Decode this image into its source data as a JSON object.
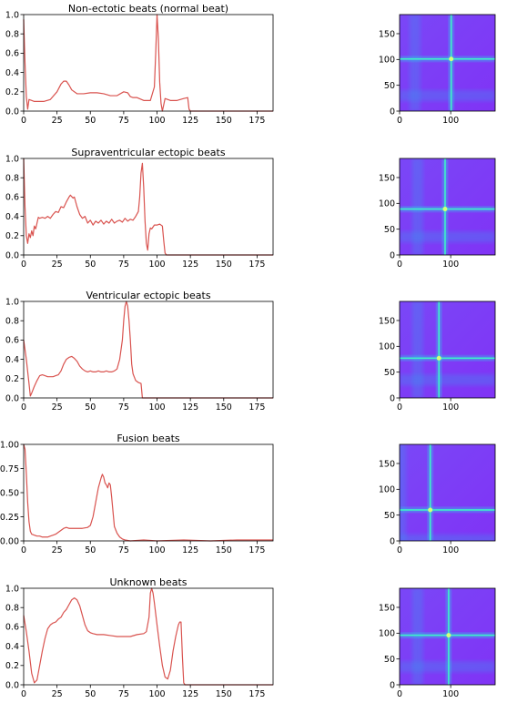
{
  "chart_data": [
    {
      "type": "line",
      "title": "Non-ectotic beats (normal beat)",
      "xlim": [
        0,
        187
      ],
      "ylim": [
        0,
        1.0
      ],
      "xticks": [
        0,
        25,
        50,
        75,
        100,
        125,
        150,
        175
      ],
      "yticks": [
        "0.0",
        "0.2",
        "0.4",
        "0.6",
        "0.8",
        "1.0"
      ],
      "grid": false,
      "line_color": "#d9534f",
      "x": [
        0,
        1,
        2,
        3,
        4,
        6,
        8,
        12,
        15,
        20,
        25,
        28,
        30,
        32,
        34,
        36,
        40,
        45,
        50,
        55,
        60,
        65,
        70,
        75,
        78,
        80,
        82,
        85,
        90,
        95,
        98,
        99,
        100,
        101,
        102,
        103,
        104,
        106,
        110,
        115,
        120,
        123,
        124,
        125,
        187
      ],
      "y": [
        0.95,
        0.5,
        0.15,
        0.02,
        0.12,
        0.11,
        0.1,
        0.1,
        0.1,
        0.12,
        0.2,
        0.28,
        0.31,
        0.31,
        0.27,
        0.22,
        0.18,
        0.18,
        0.19,
        0.19,
        0.18,
        0.16,
        0.16,
        0.2,
        0.19,
        0.15,
        0.14,
        0.14,
        0.11,
        0.11,
        0.25,
        0.6,
        1.0,
        0.75,
        0.3,
        0.08,
        0.0,
        0.13,
        0.11,
        0.11,
        0.13,
        0.14,
        0.02,
        0.0,
        0.0
      ]
    },
    {
      "type": "heatmap",
      "xlim": [
        0,
        187
      ],
      "ylim": [
        0,
        187
      ],
      "xticks": [
        0,
        100
      ],
      "yticks": [
        0,
        50,
        100,
        150
      ],
      "colormap": "rainbow",
      "bright_index": 101,
      "faint_index": 30
    },
    {
      "type": "line",
      "title": "Supraventricular ectopic beats",
      "xlim": [
        0,
        187
      ],
      "ylim": [
        0,
        1.0
      ],
      "xticks": [
        0,
        25,
        50,
        75,
        100,
        125,
        150,
        175
      ],
      "yticks": [
        "0.0",
        "0.2",
        "0.4",
        "0.6",
        "0.8",
        "1.0"
      ],
      "grid": false,
      "line_color": "#d9534f",
      "x": [
        0,
        1,
        2,
        3,
        4,
        5,
        6,
        7,
        8,
        9,
        10,
        11,
        12,
        14,
        16,
        18,
        20,
        22,
        24,
        26,
        28,
        30,
        32,
        34,
        35,
        37,
        38,
        40,
        42,
        44,
        46,
        48,
        50,
        52,
        54,
        56,
        58,
        60,
        62,
        64,
        66,
        68,
        70,
        72,
        74,
        76,
        78,
        80,
        82,
        84,
        86,
        87,
        88,
        89,
        90,
        91,
        92,
        93,
        94,
        95,
        96,
        98,
        100,
        102,
        104,
        105,
        106,
        107,
        187
      ],
      "y": [
        1.0,
        0.5,
        0.2,
        0.12,
        0.22,
        0.18,
        0.25,
        0.2,
        0.3,
        0.27,
        0.33,
        0.39,
        0.38,
        0.39,
        0.38,
        0.4,
        0.38,
        0.42,
        0.45,
        0.44,
        0.5,
        0.49,
        0.55,
        0.6,
        0.62,
        0.59,
        0.6,
        0.5,
        0.42,
        0.38,
        0.4,
        0.33,
        0.36,
        0.31,
        0.35,
        0.33,
        0.36,
        0.32,
        0.35,
        0.33,
        0.37,
        0.33,
        0.35,
        0.36,
        0.34,
        0.38,
        0.35,
        0.37,
        0.36,
        0.4,
        0.45,
        0.6,
        0.85,
        0.95,
        0.7,
        0.35,
        0.12,
        0.05,
        0.22,
        0.28,
        0.27,
        0.31,
        0.31,
        0.32,
        0.3,
        0.15,
        0.02,
        0.0,
        0.0
      ]
    },
    {
      "type": "heatmap",
      "xlim": [
        0,
        187
      ],
      "ylim": [
        0,
        187
      ],
      "xticks": [
        0,
        100
      ],
      "yticks": [
        0,
        50,
        100,
        150
      ],
      "colormap": "rainbow",
      "bright_index": 89,
      "faint_index": 35
    },
    {
      "type": "line",
      "title": "Ventricular ectopic beats",
      "xlim": [
        0,
        187
      ],
      "ylim": [
        0,
        1.0
      ],
      "xticks": [
        0,
        25,
        50,
        75,
        100,
        125,
        150,
        175
      ],
      "yticks": [
        "0.0",
        "0.2",
        "0.4",
        "0.6",
        "0.8",
        "1.0"
      ],
      "grid": false,
      "line_color": "#d9534f",
      "x": [
        0,
        2,
        4,
        5,
        6,
        8,
        10,
        12,
        14,
        16,
        18,
        20,
        22,
        24,
        26,
        28,
        30,
        32,
        34,
        36,
        38,
        40,
        42,
        44,
        46,
        48,
        50,
        52,
        54,
        56,
        58,
        60,
        62,
        64,
        66,
        68,
        70,
        72,
        74,
        75,
        76,
        77,
        78,
        79,
        80,
        81,
        82,
        84,
        86,
        88,
        89,
        90,
        187
      ],
      "y": [
        0.6,
        0.4,
        0.15,
        0.02,
        0.05,
        0.12,
        0.18,
        0.23,
        0.24,
        0.23,
        0.22,
        0.22,
        0.22,
        0.23,
        0.24,
        0.28,
        0.35,
        0.4,
        0.42,
        0.43,
        0.41,
        0.38,
        0.33,
        0.3,
        0.28,
        0.27,
        0.28,
        0.27,
        0.27,
        0.28,
        0.27,
        0.27,
        0.28,
        0.27,
        0.27,
        0.28,
        0.3,
        0.4,
        0.6,
        0.8,
        0.95,
        1.0,
        0.95,
        0.8,
        0.6,
        0.35,
        0.25,
        0.18,
        0.16,
        0.15,
        0.0,
        0.0,
        0.0
      ]
    },
    {
      "type": "heatmap",
      "xlim": [
        0,
        187
      ],
      "ylim": [
        0,
        187
      ],
      "xticks": [
        0,
        100
      ],
      "yticks": [
        0,
        50,
        100,
        150
      ],
      "colormap": "rainbow",
      "bright_index": 77,
      "faint_index": 35
    },
    {
      "type": "line",
      "title": "Fusion beats",
      "xlim": [
        0,
        187
      ],
      "ylim": [
        0,
        1.0
      ],
      "xticks": [
        0,
        25,
        50,
        75,
        100,
        125,
        150,
        175
      ],
      "yticks": [
        "0.00",
        "0.25",
        "0.50",
        "0.75",
        "1.00"
      ],
      "grid": false,
      "line_color": "#d9534f",
      "x": [
        0,
        1,
        2,
        3,
        4,
        5,
        6,
        8,
        10,
        12,
        14,
        16,
        18,
        20,
        22,
        24,
        26,
        28,
        30,
        32,
        34,
        36,
        40,
        44,
        48,
        50,
        52,
        54,
        56,
        58,
        59,
        60,
        61,
        62,
        63,
        64,
        65,
        66,
        67,
        68,
        70,
        72,
        74,
        76,
        80,
        90,
        100,
        120,
        140,
        160,
        187
      ],
      "y": [
        1.0,
        0.95,
        0.7,
        0.4,
        0.2,
        0.1,
        0.07,
        0.06,
        0.05,
        0.05,
        0.04,
        0.04,
        0.04,
        0.05,
        0.06,
        0.07,
        0.09,
        0.11,
        0.13,
        0.14,
        0.13,
        0.13,
        0.13,
        0.13,
        0.14,
        0.16,
        0.25,
        0.4,
        0.55,
        0.65,
        0.69,
        0.66,
        0.6,
        0.58,
        0.55,
        0.6,
        0.58,
        0.45,
        0.3,
        0.15,
        0.08,
        0.04,
        0.02,
        0.01,
        0.0,
        0.01,
        0.0,
        0.01,
        0.0,
        0.01,
        0.01
      ]
    },
    {
      "type": "heatmap",
      "xlim": [
        0,
        187
      ],
      "ylim": [
        0,
        187
      ],
      "xticks": [
        0,
        100
      ],
      "yticks": [
        0,
        50,
        100,
        150
      ],
      "colormap": "rainbow",
      "bright_index": 60,
      "faint_index": 2
    },
    {
      "type": "line",
      "title": "Unknown beats",
      "xlim": [
        0,
        187
      ],
      "ylim": [
        0,
        1.0
      ],
      "xticks": [
        0,
        25,
        50,
        75,
        100,
        125,
        150,
        175
      ],
      "yticks": [
        "0.0",
        "0.2",
        "0.4",
        "0.6",
        "0.8",
        "1.0"
      ],
      "grid": false,
      "line_color": "#d9534f",
      "x": [
        0,
        2,
        4,
        6,
        8,
        10,
        12,
        14,
        16,
        18,
        20,
        22,
        24,
        26,
        28,
        30,
        32,
        34,
        36,
        38,
        40,
        42,
        44,
        46,
        48,
        50,
        52,
        55,
        60,
        65,
        70,
        75,
        80,
        85,
        90,
        92,
        94,
        95,
        96,
        97,
        98,
        100,
        102,
        104,
        106,
        108,
        110,
        112,
        114,
        116,
        117,
        118,
        119,
        120,
        121,
        187
      ],
      "y": [
        0.72,
        0.55,
        0.35,
        0.12,
        0.02,
        0.05,
        0.2,
        0.35,
        0.48,
        0.58,
        0.62,
        0.64,
        0.65,
        0.68,
        0.7,
        0.75,
        0.78,
        0.83,
        0.88,
        0.9,
        0.88,
        0.82,
        0.72,
        0.62,
        0.56,
        0.54,
        0.53,
        0.52,
        0.52,
        0.51,
        0.5,
        0.5,
        0.5,
        0.52,
        0.53,
        0.55,
        0.7,
        0.95,
        1.0,
        0.95,
        0.85,
        0.62,
        0.4,
        0.2,
        0.08,
        0.06,
        0.15,
        0.35,
        0.5,
        0.62,
        0.65,
        0.65,
        0.3,
        0.02,
        0.0,
        0.0
      ]
    },
    {
      "type": "heatmap",
      "xlim": [
        0,
        187
      ],
      "ylim": [
        0,
        187
      ],
      "xticks": [
        0,
        100
      ],
      "yticks": [
        0,
        50,
        100,
        150
      ],
      "colormap": "rainbow",
      "bright_index": 96,
      "faint_index": 35
    }
  ]
}
